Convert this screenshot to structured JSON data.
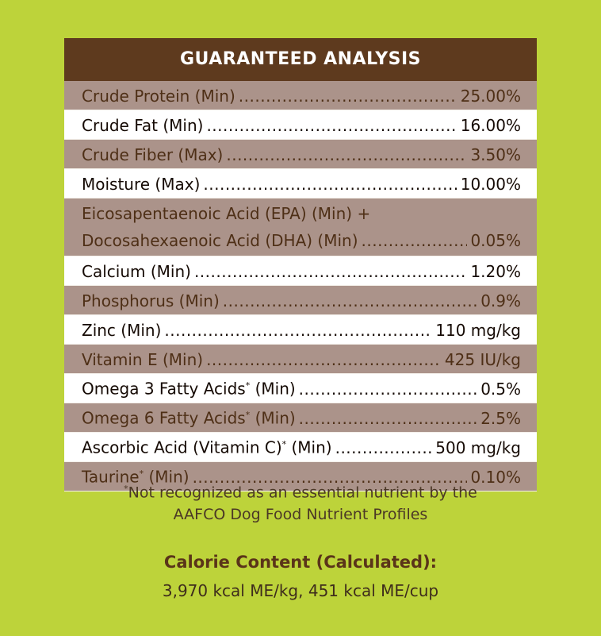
{
  "panel": {
    "title": "GUARANTEED ANALYSIS",
    "rows": [
      {
        "label": "Crude Protein (Min)",
        "value": "25.00%"
      },
      {
        "label": "Crude Fat (Min)",
        "value": "16.00%"
      },
      {
        "label": "Crude Fiber (Max)",
        "value": "3.50%"
      },
      {
        "label": "Moisture (Max)",
        "value": "10.00%"
      },
      {
        "label_line1": "Eicosapentaenoic Acid (EPA) (Min) +",
        "label": "Docosahexaenoic Acid (DHA) (Min)",
        "value": "0.05%"
      },
      {
        "label": "Calcium (Min)",
        "value": "1.20%"
      },
      {
        "label": "Phosphorus (Min)",
        "value": "0.9%"
      },
      {
        "label": "Zinc (Min)",
        "value": "110 mg/kg"
      },
      {
        "label": "Vitamin E (Min)",
        "value": "425 IU/kg"
      },
      {
        "label_pre": "Omega 3 Fatty Acids",
        "label_post": " (Min)",
        "value": "0.5%"
      },
      {
        "label_pre": "Omega 6 Fatty Acids",
        "label_post": " (Min)",
        "value": "2.5%"
      },
      {
        "label_pre": "Ascorbic Acid (Vitamin C)",
        "label_post": " (Min)",
        "value": "500 mg/kg"
      },
      {
        "label_pre": "Taurine",
        "label_post": " (Min)",
        "value": "0.10%"
      }
    ]
  },
  "footnote": {
    "marker": "*",
    "line1": "Not recognized as an essential nutrient by the",
    "line2": "AAFCO Dog Food Nutrient Profiles"
  },
  "calorie": {
    "title": "Calorie Content (Calculated):",
    "value": "3,970 kcal ME/kg, 451 kcal ME/cup"
  },
  "colors": {
    "background": "#bdd33a",
    "header": "#5e3a1e",
    "alt_row": "#ab938a"
  }
}
